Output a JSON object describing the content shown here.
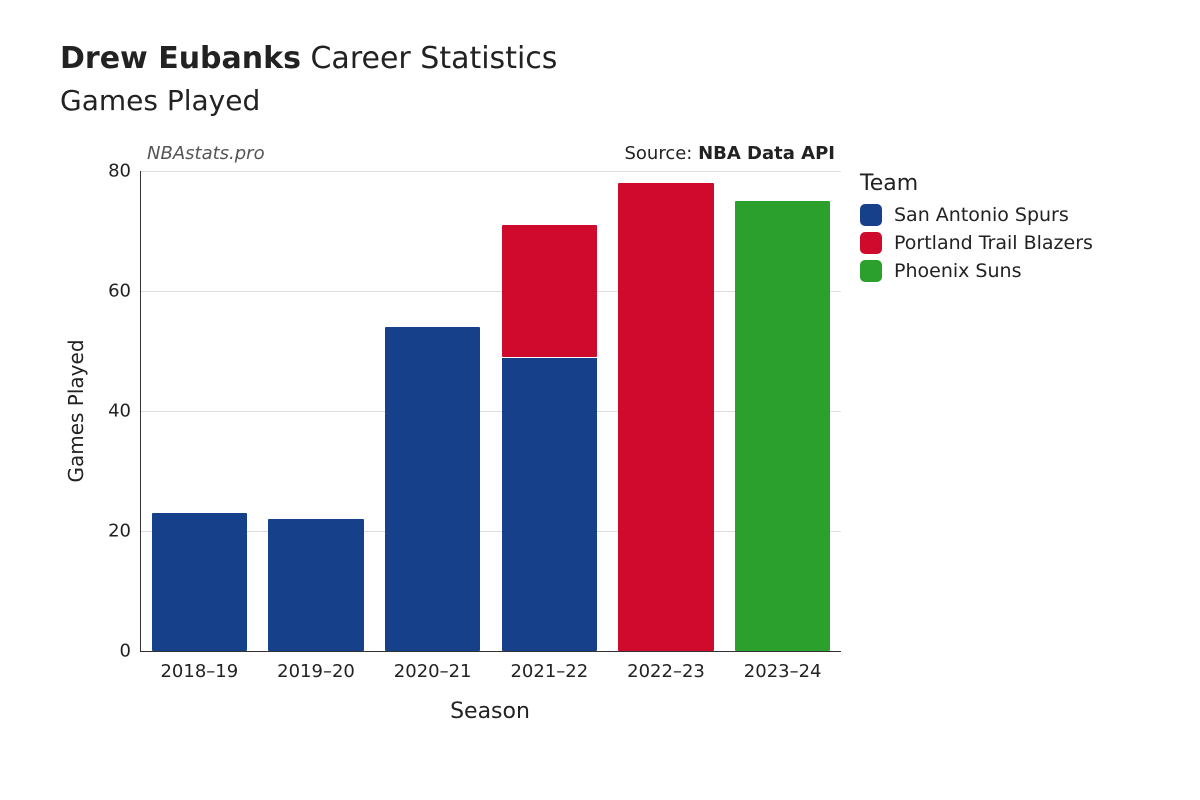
{
  "title": {
    "player_name": "Drew Eubanks",
    "suffix": "Career Statistics",
    "subtitle": "Games Played",
    "title_fontsize": 30,
    "subtitle_fontsize": 28
  },
  "attribution": {
    "watermark": "NBAstats.pro",
    "source_prefix": "Source: ",
    "source_name": "NBA Data API"
  },
  "chart": {
    "type": "stacked-bar",
    "background_color": "#ffffff",
    "axis_color": "#333333",
    "grid_color": "#dddddd",
    "tick_fontsize": 18,
    "axis_label_fontsize": 20,
    "x_label": "Season",
    "y_label": "Games Played",
    "ylim": [
      0,
      80
    ],
    "ytick_step": 20,
    "categories": [
      "2018–19",
      "2019–20",
      "2020–21",
      "2021–22",
      "2022–23",
      "2023–24"
    ],
    "bar_width_ratio": 0.82,
    "stacks": [
      [
        {
          "team": "San Antonio Spurs",
          "value": 23
        }
      ],
      [
        {
          "team": "San Antonio Spurs",
          "value": 22
        }
      ],
      [
        {
          "team": "San Antonio Spurs",
          "value": 54
        }
      ],
      [
        {
          "team": "San Antonio Spurs",
          "value": 49
        },
        {
          "team": "Portland Trail Blazers",
          "value": 22
        }
      ],
      [
        {
          "team": "Portland Trail Blazers",
          "value": 78
        }
      ],
      [
        {
          "team": "Phoenix Suns",
          "value": 75
        }
      ]
    ]
  },
  "legend": {
    "title": "Team",
    "items": [
      {
        "label": "San Antonio Spurs",
        "color": "#17408b"
      },
      {
        "label": "Portland Trail Blazers",
        "color": "#cf0a2c"
      },
      {
        "label": "Phoenix Suns",
        "color": "#2ca02c"
      }
    ]
  }
}
